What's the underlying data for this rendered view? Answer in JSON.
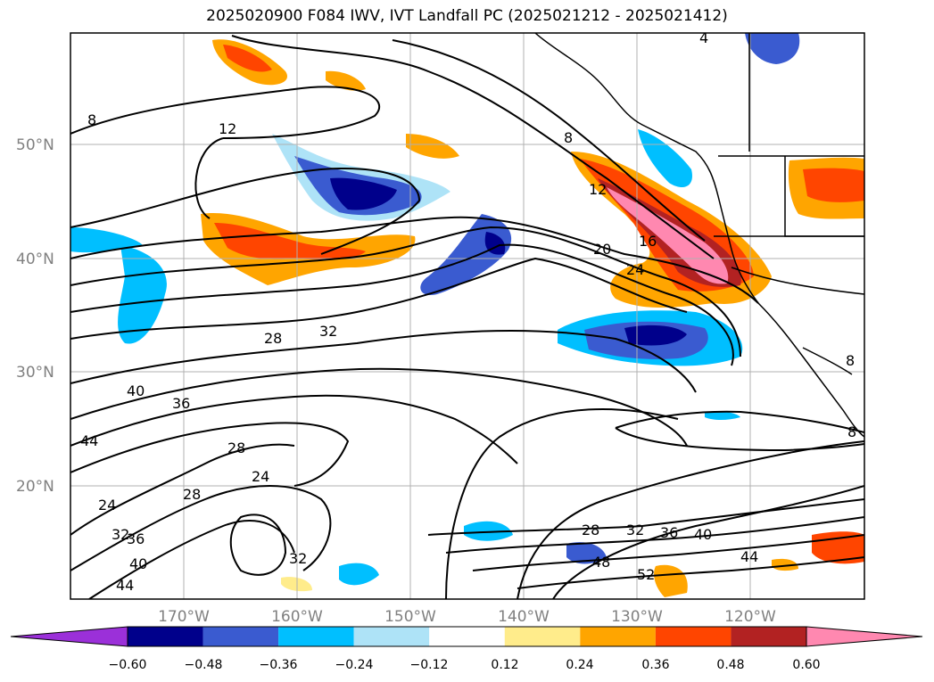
{
  "title": "2025020900 F084 IWV, IVT Landfall PC (2025021212 - 2025021412)",
  "map": {
    "lat_labels": [
      "50°N",
      "40°N",
      "30°N",
      "20°N"
    ],
    "lon_labels": [
      "170°W",
      "160°W",
      "150°W",
      "140°W",
      "130°W",
      "120°W"
    ],
    "contour_labels": [
      "8",
      "12",
      "8",
      "12",
      "16",
      "20",
      "24",
      "28",
      "32",
      "40",
      "36",
      "44",
      "28",
      "24",
      "28",
      "24",
      "32",
      "36",
      "40",
      "44",
      "32",
      "28",
      "32",
      "36",
      "40",
      "44",
      "48",
      "52",
      "4",
      "8",
      "8"
    ]
  },
  "colorbar": {
    "tick_labels": [
      "−0.60",
      "−0.48",
      "−0.36",
      "−0.24",
      "−0.12",
      "0.12",
      "0.24",
      "0.36",
      "0.48",
      "0.60"
    ],
    "colors": [
      "#9b30d9",
      "#00008b",
      "#3a5bd0",
      "#00bfff",
      "#aee3f7",
      "#ffffff",
      "#ffec8b",
      "#ffa500",
      "#ff4500",
      "#b22222",
      "#ff88b0"
    ]
  }
}
